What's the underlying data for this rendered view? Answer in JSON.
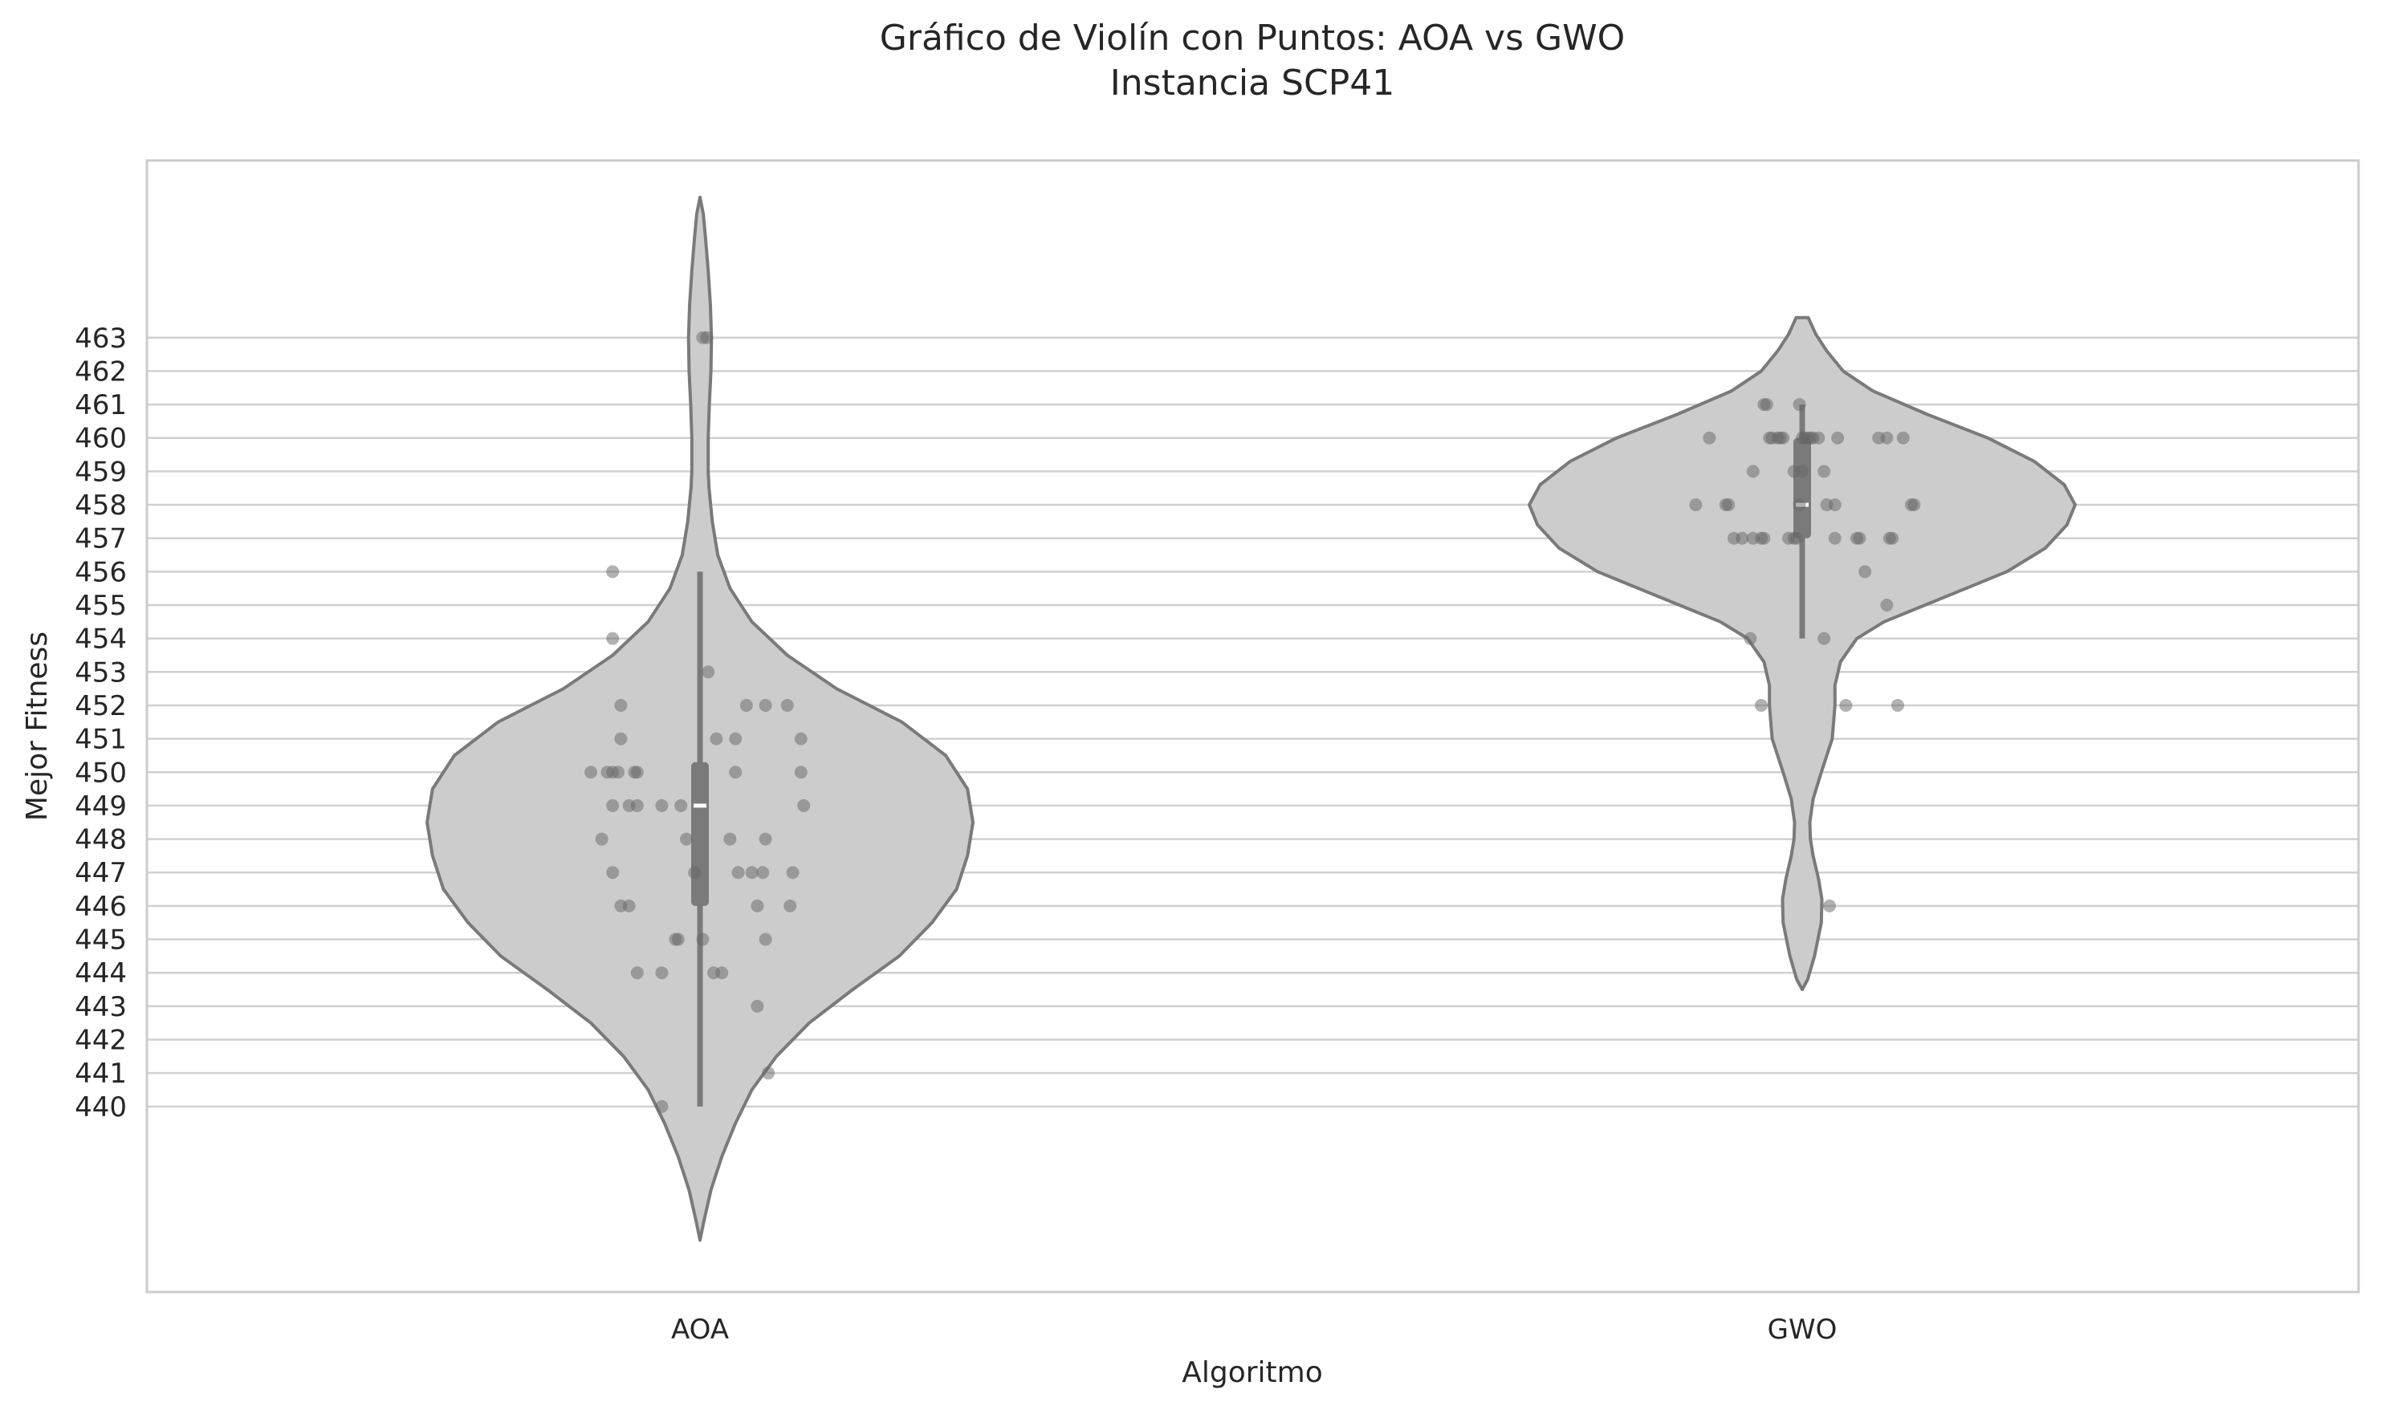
{
  "chart_data": {
    "type": "violin",
    "title": "Gráfico de Violín con Puntos: AOA vs GWO",
    "subtitle": "Instancia SCP41",
    "xlabel": "Algoritmo",
    "ylabel": "Mejor Fitness",
    "categories": [
      "AOA",
      "GWO"
    ],
    "y_ticks": [
      440,
      441,
      442,
      443,
      444,
      445,
      446,
      447,
      448,
      449,
      450,
      451,
      452,
      453,
      454,
      455,
      456,
      457,
      458,
      459,
      460,
      461,
      462,
      463
    ],
    "ylim": [
      434.45,
      468.3
    ],
    "grid": "horizontal",
    "colors": {
      "violin_fill": "#cccccc",
      "violin_edge": "#7a7a7a",
      "box": "#7a7a7a",
      "median": "#ffffff",
      "points": "#666666",
      "grid": "#d0d0d0",
      "frame": "#cccccc"
    },
    "series": [
      {
        "category": "AOA",
        "box": {
          "min": 440,
          "q1": 446,
          "median": 449,
          "q3": 450.3,
          "max": 456
        },
        "kde_range": [
          436,
          467.2
        ],
        "density_profile": [
          [
            436.0,
            0.0
          ],
          [
            436.6,
            0.015
          ],
          [
            437.5,
            0.04
          ],
          [
            438.5,
            0.08
          ],
          [
            439.5,
            0.13
          ],
          [
            440.5,
            0.19
          ],
          [
            441.5,
            0.28
          ],
          [
            442.5,
            0.4
          ],
          [
            443.5,
            0.56
          ],
          [
            444.5,
            0.73
          ],
          [
            445.5,
            0.85
          ],
          [
            446.5,
            0.94
          ],
          [
            447.5,
            0.98
          ],
          [
            448.5,
            1.0
          ],
          [
            449.5,
            0.98
          ],
          [
            450.5,
            0.9
          ],
          [
            451.5,
            0.74
          ],
          [
            452.5,
            0.5
          ],
          [
            453.5,
            0.32
          ],
          [
            454.5,
            0.19
          ],
          [
            455.5,
            0.11
          ],
          [
            456.5,
            0.065
          ],
          [
            457.5,
            0.045
          ],
          [
            458.5,
            0.033
          ],
          [
            459.0,
            0.03
          ],
          [
            460.0,
            0.03
          ],
          [
            461.0,
            0.034
          ],
          [
            462.0,
            0.04
          ],
          [
            463.0,
            0.042
          ],
          [
            464.0,
            0.038
          ],
          [
            465.0,
            0.03
          ],
          [
            466.0,
            0.02
          ],
          [
            466.7,
            0.012
          ],
          [
            467.2,
            0.0
          ]
        ],
        "points": [
          {
            "y": 463,
            "j": 0.01
          },
          {
            "y": 463,
            "j": 0.025
          },
          {
            "y": 456,
            "j": -0.32
          },
          {
            "y": 454,
            "j": -0.32
          },
          {
            "y": 453,
            "j": 0.03
          },
          {
            "y": 452,
            "j": -0.29
          },
          {
            "y": 452,
            "j": 0.17
          },
          {
            "y": 452,
            "j": 0.24
          },
          {
            "y": 452,
            "j": 0.32
          },
          {
            "y": 451,
            "j": -0.29
          },
          {
            "y": 451,
            "j": 0.06
          },
          {
            "y": 451,
            "j": 0.13
          },
          {
            "y": 451,
            "j": 0.37
          },
          {
            "y": 450,
            "j": -0.4
          },
          {
            "y": 450,
            "j": -0.34
          },
          {
            "y": 450,
            "j": -0.32
          },
          {
            "y": 450,
            "j": -0.3
          },
          {
            "y": 450,
            "j": -0.24
          },
          {
            "y": 450,
            "j": -0.23
          },
          {
            "y": 450,
            "j": 0.13
          },
          {
            "y": 450,
            "j": 0.37
          },
          {
            "y": 449,
            "j": -0.32
          },
          {
            "y": 449,
            "j": -0.26
          },
          {
            "y": 449,
            "j": -0.23
          },
          {
            "y": 449,
            "j": -0.14
          },
          {
            "y": 449,
            "j": -0.07
          },
          {
            "y": 449,
            "j": 0.38
          },
          {
            "y": 448,
            "j": -0.36
          },
          {
            "y": 448,
            "j": -0.05
          },
          {
            "y": 448,
            "j": 0.11
          },
          {
            "y": 448,
            "j": 0.24
          },
          {
            "y": 447,
            "j": -0.32
          },
          {
            "y": 447,
            "j": -0.02
          },
          {
            "y": 447,
            "j": 0.14
          },
          {
            "y": 447,
            "j": 0.19
          },
          {
            "y": 447,
            "j": 0.23
          },
          {
            "y": 447,
            "j": 0.34
          },
          {
            "y": 446,
            "j": -0.29
          },
          {
            "y": 446,
            "j": -0.26
          },
          {
            "y": 446,
            "j": 0.21
          },
          {
            "y": 446,
            "j": 0.33
          },
          {
            "y": 445,
            "j": -0.09
          },
          {
            "y": 445,
            "j": -0.08
          },
          {
            "y": 445,
            "j": 0.01
          },
          {
            "y": 445,
            "j": 0.24
          },
          {
            "y": 444,
            "j": -0.23
          },
          {
            "y": 444,
            "j": -0.14
          },
          {
            "y": 444,
            "j": 0.05
          },
          {
            "y": 444,
            "j": 0.08
          },
          {
            "y": 443,
            "j": 0.21
          },
          {
            "y": 441,
            "j": 0.25
          },
          {
            "y": 440,
            "j": -0.14
          }
        ]
      },
      {
        "category": "GWO",
        "box": {
          "min": 454,
          "q1": 457,
          "median": 458,
          "q3": 460,
          "max": 461
        },
        "kde_range": [
          443.5,
          463.6
        ],
        "density_profile": [
          [
            443.5,
            0.0
          ],
          [
            443.8,
            0.02
          ],
          [
            444.5,
            0.045
          ],
          [
            445.5,
            0.07
          ],
          [
            446.2,
            0.072
          ],
          [
            446.8,
            0.06
          ],
          [
            447.5,
            0.04
          ],
          [
            448.0,
            0.03
          ],
          [
            448.5,
            0.028
          ],
          [
            449.2,
            0.04
          ],
          [
            450.0,
            0.07
          ],
          [
            451.0,
            0.11
          ],
          [
            452.0,
            0.12
          ],
          [
            452.6,
            0.12
          ],
          [
            453.3,
            0.14
          ],
          [
            454.0,
            0.2
          ],
          [
            454.5,
            0.3
          ],
          [
            455.0,
            0.45
          ],
          [
            455.5,
            0.6
          ],
          [
            456.0,
            0.75
          ],
          [
            456.7,
            0.89
          ],
          [
            457.4,
            0.97
          ],
          [
            458.0,
            1.0
          ],
          [
            458.6,
            0.96
          ],
          [
            459.3,
            0.85
          ],
          [
            460.0,
            0.68
          ],
          [
            460.7,
            0.46
          ],
          [
            461.4,
            0.26
          ],
          [
            462.0,
            0.15
          ],
          [
            462.6,
            0.09
          ],
          [
            463.1,
            0.05
          ],
          [
            463.6,
            0.022
          ]
        ],
        "points": [
          {
            "y": 461,
            "j": -0.14
          },
          {
            "y": 461,
            "j": -0.13
          },
          {
            "y": 461,
            "j": -0.01
          },
          {
            "y": 460,
            "j": -0.34
          },
          {
            "y": 460,
            "j": -0.12
          },
          {
            "y": 460,
            "j": -0.11
          },
          {
            "y": 460,
            "j": -0.09
          },
          {
            "y": 460,
            "j": -0.08
          },
          {
            "y": 460,
            "j": -0.07
          },
          {
            "y": 460,
            "j": 0.0
          },
          {
            "y": 460,
            "j": 0.01
          },
          {
            "y": 460,
            "j": 0.02
          },
          {
            "y": 460,
            "j": 0.03
          },
          {
            "y": 460,
            "j": 0.04
          },
          {
            "y": 460,
            "j": 0.06
          },
          {
            "y": 460,
            "j": 0.13
          },
          {
            "y": 460,
            "j": 0.28
          },
          {
            "y": 460,
            "j": 0.31
          },
          {
            "y": 460,
            "j": 0.37
          },
          {
            "y": 459,
            "j": -0.18
          },
          {
            "y": 459,
            "j": -0.03
          },
          {
            "y": 459,
            "j": 0.0
          },
          {
            "y": 459,
            "j": 0.08
          },
          {
            "y": 458,
            "j": -0.39
          },
          {
            "y": 458,
            "j": -0.28
          },
          {
            "y": 458,
            "j": -0.27
          },
          {
            "y": 458,
            "j": -0.01
          },
          {
            "y": 458,
            "j": 0.09
          },
          {
            "y": 458,
            "j": 0.12
          },
          {
            "y": 458,
            "j": 0.4
          },
          {
            "y": 458,
            "j": 0.41
          },
          {
            "y": 457,
            "j": -0.25
          },
          {
            "y": 457,
            "j": -0.22
          },
          {
            "y": 457,
            "j": -0.18
          },
          {
            "y": 457,
            "j": -0.15
          },
          {
            "y": 457,
            "j": -0.14
          },
          {
            "y": 457,
            "j": -0.05
          },
          {
            "y": 457,
            "j": -0.03
          },
          {
            "y": 457,
            "j": -0.02
          },
          {
            "y": 457,
            "j": 0.12
          },
          {
            "y": 457,
            "j": 0.2
          },
          {
            "y": 457,
            "j": 0.21
          },
          {
            "y": 457,
            "j": 0.32
          },
          {
            "y": 457,
            "j": 0.33
          },
          {
            "y": 456,
            "j": 0.23
          },
          {
            "y": 455,
            "j": 0.31
          },
          {
            "y": 454,
            "j": -0.19
          },
          {
            "y": 454,
            "j": 0.08
          },
          {
            "y": 452,
            "j": -0.15
          },
          {
            "y": 452,
            "j": 0.16
          },
          {
            "y": 452,
            "j": 0.35
          },
          {
            "y": 446,
            "j": 0.1
          }
        ]
      }
    ]
  }
}
